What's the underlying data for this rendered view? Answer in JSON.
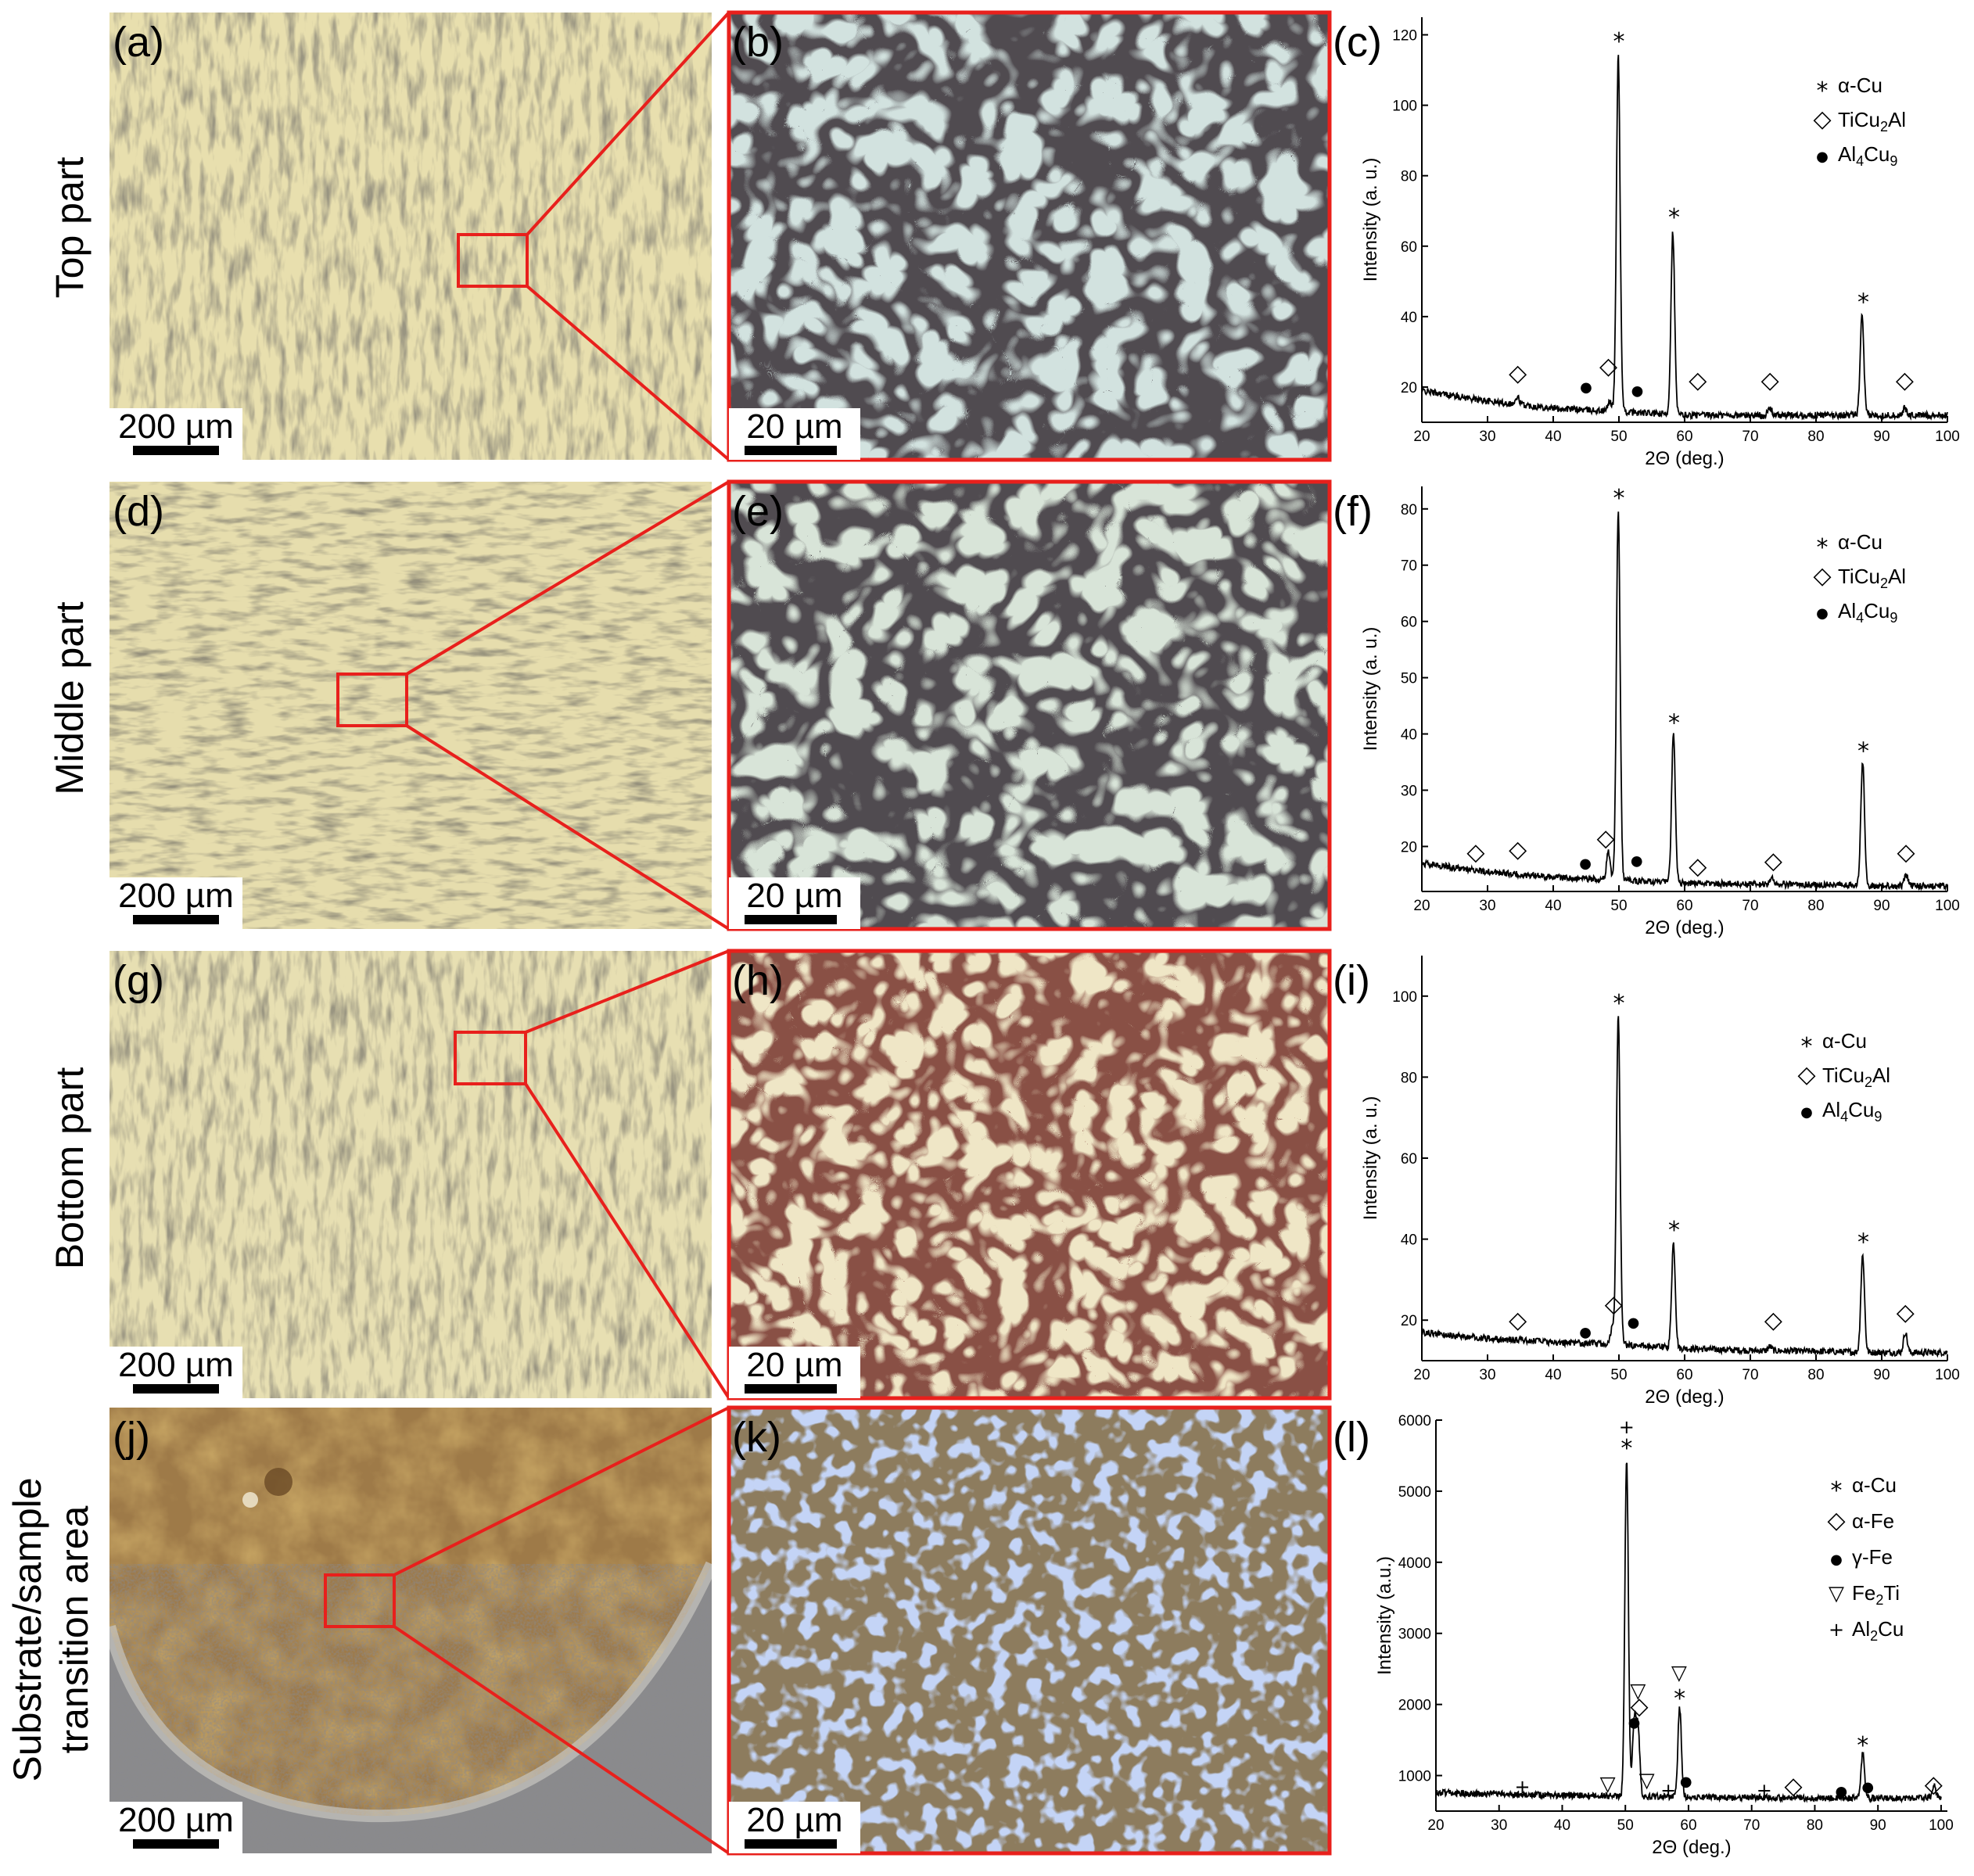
{
  "rows": [
    {
      "label": "Top part",
      "tags": [
        "(a)",
        "(b)",
        "(c)"
      ],
      "scale_low": "200 µm",
      "scale_high": "20 µm"
    },
    {
      "label": "Middle part",
      "tags": [
        "(d)",
        "(e)",
        "(f)"
      ],
      "scale_low": "200 µm",
      "scale_high": "20 µm"
    },
    {
      "label": "Bottom part",
      "tags": [
        "(g)",
        "(h)",
        "(i)"
      ],
      "scale_low": "200 µm",
      "scale_high": "20 µm"
    },
    {
      "label_line1": "Substrate/sample",
      "label_line2": "transition area",
      "tags": [
        "(j)",
        "(k)",
        "(l)"
      ],
      "scale_low": "200 µm",
      "scale_high": "20 µm"
    }
  ],
  "colors": {
    "zoom_box": "#e8201c",
    "cream": "#e9e0b0",
    "light_blue": "#cfe0df",
    "cream_light": "#f0e8c8",
    "brown": "#a07a40",
    "blue_particle": "#8fa9e6"
  },
  "chart_data": [
    {
      "type": "line",
      "panel": "(c)",
      "xlabel": "2Θ (deg.)",
      "ylabel": "Intensity (a. u.)",
      "xlim": [
        20,
        100
      ],
      "ylim": [
        10,
        125
      ],
      "xticks": [
        20,
        30,
        40,
        50,
        60,
        70,
        80,
        90,
        100
      ],
      "yticks": [
        20,
        40,
        60,
        80,
        100,
        120
      ],
      "baseline": [
        [
          20,
          19
        ],
        [
          30,
          16
        ],
        [
          40,
          14
        ],
        [
          50,
          13
        ],
        [
          60,
          12
        ],
        [
          70,
          12
        ],
        [
          80,
          12
        ],
        [
          90,
          12
        ],
        [
          100,
          12
        ]
      ],
      "peaks": [
        {
          "x": 34.6,
          "y": 17
        },
        {
          "x": 48.6,
          "y": 16
        },
        {
          "x": 49.9,
          "y": 114
        },
        {
          "x": 58.2,
          "y": 64
        },
        {
          "x": 73.0,
          "y": 14
        },
        {
          "x": 87.0,
          "y": 40
        },
        {
          "x": 93.5,
          "y": 14
        }
      ],
      "markers": [
        {
          "sym": "*",
          "x": 50.0,
          "y": 119
        },
        {
          "sym": "*",
          "x": 58.4,
          "y": 69
        },
        {
          "sym": "*",
          "x": 87.2,
          "y": 45
        },
        {
          "sym": "◇",
          "x": 34.6,
          "y": 24
        },
        {
          "sym": "◇",
          "x": 48.4,
          "y": 26
        },
        {
          "sym": "◇",
          "x": 62.0,
          "y": 22
        },
        {
          "sym": "◇",
          "x": 73.0,
          "y": 22
        },
        {
          "sym": "◇",
          "x": 93.5,
          "y": 22
        },
        {
          "sym": "●",
          "x": 45.0,
          "y": 20
        },
        {
          "sym": "●",
          "x": 52.8,
          "y": 19
        }
      ],
      "legend": [
        {
          "sym": "*",
          "parts": [
            "α-Cu"
          ]
        },
        {
          "sym": "◇",
          "parts": [
            "TiCu",
            "2",
            "Al"
          ]
        },
        {
          "sym": "●",
          "parts": [
            "Al",
            "4",
            "Cu",
            "9"
          ]
        }
      ]
    },
    {
      "type": "line",
      "panel": "(f)",
      "xlabel": "2Θ (deg.)",
      "ylabel": "Intensity (a. u.)",
      "xlim": [
        20,
        100
      ],
      "ylim": [
        12,
        84
      ],
      "xticks": [
        20,
        30,
        40,
        50,
        60,
        70,
        80,
        90,
        100
      ],
      "yticks": [
        20,
        30,
        40,
        50,
        60,
        70,
        80
      ],
      "baseline": [
        [
          20,
          17
        ],
        [
          30,
          15.5
        ],
        [
          40,
          14.5
        ],
        [
          50,
          14
        ],
        [
          60,
          13.5
        ],
        [
          70,
          13.3
        ],
        [
          80,
          13.2
        ],
        [
          90,
          13
        ],
        [
          100,
          13
        ]
      ],
      "peaks": [
        {
          "x": 48.4,
          "y": 19
        },
        {
          "x": 49.9,
          "y": 80
        },
        {
          "x": 58.3,
          "y": 40
        },
        {
          "x": 73.3,
          "y": 14.5
        },
        {
          "x": 87.1,
          "y": 35
        },
        {
          "x": 93.7,
          "y": 15
        }
      ],
      "markers": [
        {
          "sym": "*",
          "x": 50.0,
          "y": 82.5
        },
        {
          "sym": "*",
          "x": 58.4,
          "y": 42.5
        },
        {
          "sym": "*",
          "x": 87.2,
          "y": 37.5
        },
        {
          "sym": "◇",
          "x": 28.2,
          "y": 19
        },
        {
          "sym": "◇",
          "x": 34.6,
          "y": 19.5
        },
        {
          "sym": "◇",
          "x": 48.0,
          "y": 21.5
        },
        {
          "sym": "◇",
          "x": 62.0,
          "y": 16.5
        },
        {
          "sym": "◇",
          "x": 73.5,
          "y": 17.5
        },
        {
          "sym": "◇",
          "x": 93.7,
          "y": 19
        },
        {
          "sym": "●",
          "x": 44.9,
          "y": 17
        },
        {
          "sym": "●",
          "x": 52.7,
          "y": 17.5
        }
      ],
      "legend": [
        {
          "sym": "*",
          "parts": [
            "α-Cu"
          ]
        },
        {
          "sym": "◇",
          "parts": [
            "TiCu",
            "2",
            "Al"
          ]
        },
        {
          "sym": "●",
          "parts": [
            "Al",
            "4",
            "Cu",
            "9"
          ]
        }
      ]
    },
    {
      "type": "line",
      "panel": "(i)",
      "xlabel": "2Θ (deg.)",
      "ylabel": "Intensity (a. u.)",
      "xlim": [
        20,
        100
      ],
      "ylim": [
        10,
        110
      ],
      "xticks": [
        20,
        30,
        40,
        50,
        60,
        70,
        80,
        90,
        100
      ],
      "yticks": [
        20,
        40,
        60,
        80,
        100
      ],
      "baseline": [
        [
          20,
          17
        ],
        [
          30,
          15.5
        ],
        [
          40,
          14.5
        ],
        [
          50,
          14
        ],
        [
          60,
          13
        ],
        [
          70,
          12.5
        ],
        [
          80,
          12.3
        ],
        [
          90,
          12
        ],
        [
          100,
          12
        ]
      ],
      "peaks": [
        {
          "x": 49.0,
          "y": 18
        },
        {
          "x": 49.9,
          "y": 95
        },
        {
          "x": 58.3,
          "y": 39
        },
        {
          "x": 73.0,
          "y": 13.5
        },
        {
          "x": 87.1,
          "y": 36
        },
        {
          "x": 93.6,
          "y": 17
        }
      ],
      "markers": [
        {
          "sym": "*",
          "x": 50.0,
          "y": 99
        },
        {
          "sym": "*",
          "x": 58.4,
          "y": 43
        },
        {
          "sym": "*",
          "x": 87.2,
          "y": 40
        },
        {
          "sym": "◇",
          "x": 34.6,
          "y": 20
        },
        {
          "sym": "◇",
          "x": 49.2,
          "y": 24
        },
        {
          "sym": "◇",
          "x": 73.5,
          "y": 20
        },
        {
          "sym": "◇",
          "x": 93.6,
          "y": 22
        },
        {
          "sym": "●",
          "x": 44.9,
          "y": 17
        },
        {
          "sym": "●",
          "x": 52.2,
          "y": 19.5
        }
      ],
      "legend": [
        {
          "sym": "*",
          "parts": [
            "α-Cu"
          ]
        },
        {
          "sym": "◇",
          "parts": [
            "TiCu",
            "2",
            "Al"
          ]
        },
        {
          "sym": "●",
          "parts": [
            "Al",
            "4",
            "Cu",
            "9"
          ]
        }
      ]
    },
    {
      "type": "line",
      "panel": "(l)",
      "xlabel": "2Θ (deg.)",
      "ylabel": "Intensity (a.u.)",
      "xlim": [
        20,
        101
      ],
      "ylim": [
        500,
        6000
      ],
      "xticks": [
        20,
        30,
        40,
        50,
        60,
        70,
        80,
        90,
        100
      ],
      "yticks": [
        1000,
        2000,
        3000,
        4000,
        5000,
        6000
      ],
      "baseline": [
        [
          20,
          760
        ],
        [
          30,
          740
        ],
        [
          40,
          720
        ],
        [
          50,
          710
        ],
        [
          60,
          700
        ],
        [
          70,
          690
        ],
        [
          80,
          680
        ],
        [
          90,
          680
        ],
        [
          100,
          690
        ]
      ],
      "peaks": [
        {
          "x": 50.2,
          "y": 5450
        },
        {
          "x": 51.4,
          "y": 1750
        },
        {
          "x": 52.0,
          "y": 1650
        },
        {
          "x": 58.6,
          "y": 1950
        },
        {
          "x": 87.6,
          "y": 1320
        },
        {
          "x": 98.9,
          "y": 860
        }
      ],
      "markers": [
        {
          "sym": "+",
          "x": 50.2,
          "y": 5900
        },
        {
          "sym": "*",
          "x": 50.2,
          "y": 5650
        },
        {
          "sym": "▽",
          "x": 52.0,
          "y": 2200
        },
        {
          "sym": "◇",
          "x": 52.2,
          "y": 1980
        },
        {
          "sym": "●",
          "x": 51.4,
          "y": 1750
        },
        {
          "sym": "▽",
          "x": 58.5,
          "y": 2450
        },
        {
          "sym": "*",
          "x": 58.6,
          "y": 2130
        },
        {
          "sym": "+",
          "x": 33.7,
          "y": 840
        },
        {
          "sym": "▽",
          "x": 47.2,
          "y": 890
        },
        {
          "sym": "▽",
          "x": 53.4,
          "y": 940
        },
        {
          "sym": "+",
          "x": 56.8,
          "y": 790
        },
        {
          "sym": "●",
          "x": 59.6,
          "y": 920
        },
        {
          "sym": "+",
          "x": 72.0,
          "y": 790
        },
        {
          "sym": "◇",
          "x": 76.6,
          "y": 860
        },
        {
          "sym": "●",
          "x": 84.2,
          "y": 780
        },
        {
          "sym": "*",
          "x": 87.6,
          "y": 1470
        },
        {
          "sym": "●",
          "x": 88.4,
          "y": 840
        },
        {
          "sym": "◇",
          "x": 98.8,
          "y": 880
        }
      ],
      "legend": [
        {
          "sym": "*",
          "parts": [
            "α-Cu"
          ]
        },
        {
          "sym": "◇",
          "parts": [
            "α-Fe"
          ]
        },
        {
          "sym": "●",
          "parts": [
            "γ-Fe"
          ]
        },
        {
          "sym": "▽",
          "parts": [
            "Fe",
            "2",
            "Ti"
          ]
        },
        {
          "sym": "+",
          "parts": [
            "Al",
            "2",
            "Cu"
          ]
        }
      ]
    }
  ]
}
